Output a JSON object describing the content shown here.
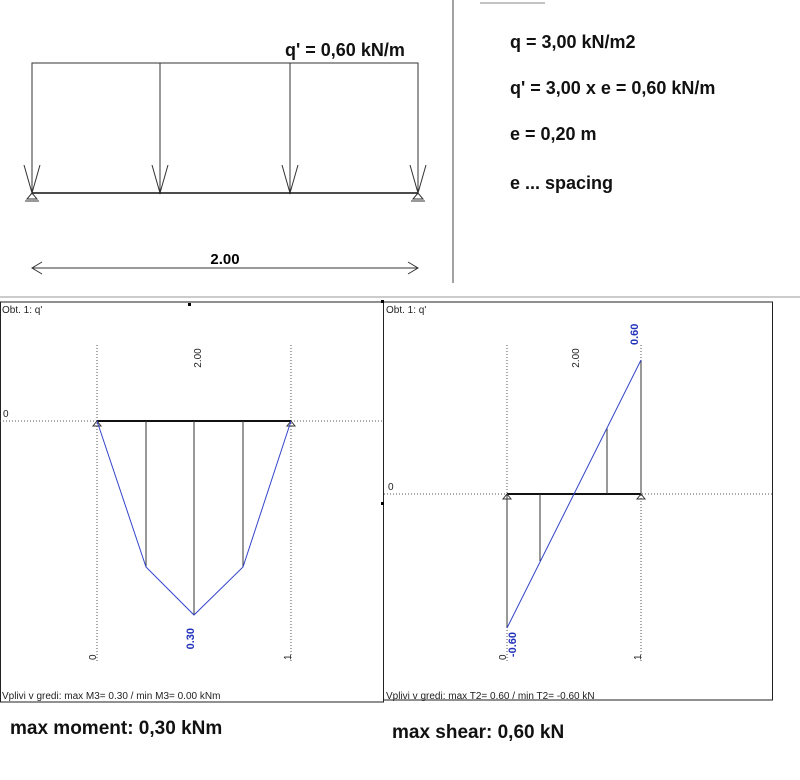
{
  "top": {
    "load_label": "q' = 0,60 kN/m",
    "span_label": "2.00"
  },
  "formulas": [
    "q = 3,00 kN/m2",
    "q' = 3,00 x e = 0,60 kN/m",
    "e = 0,20 m",
    "e ... spacing"
  ],
  "moment_panel": {
    "title": "Obt. 1: q'",
    "span_label": "2.00",
    "value_label": "0.30",
    "start_label": "0",
    "end_label": "1",
    "zero_label": "0",
    "footer": "Vplivi v gredi: max M3= 0.30 / min M3= 0.00 kNm"
  },
  "shear_panel": {
    "title": "Obt. 1: q'",
    "span_label": "2.00",
    "max_label": "0.60",
    "min_label": "-0.60",
    "start_label": "0",
    "end_label": "1",
    "zero_label": "0",
    "footer": "Vplivi v gredi: max T2= 0.60 / min T2= -0.60 kN"
  },
  "captions": {
    "moment": "max moment: 0,30 kNm",
    "shear": "max shear: 0,60 kN"
  }
}
